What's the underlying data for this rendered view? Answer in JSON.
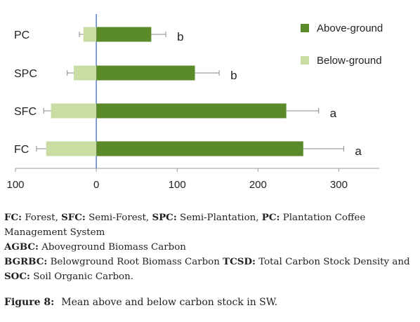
{
  "chart_data": {
    "type": "bar",
    "orientation": "horizontal",
    "categories": [
      "PC",
      "SPC",
      "SFC",
      "FC"
    ],
    "series": [
      {
        "name": "Above-ground",
        "color": "#5a8a2a",
        "values": [
          68,
          122,
          235,
          256
        ],
        "errors": [
          18,
          30,
          40,
          50
        ]
      },
      {
        "name": "Below-ground",
        "color": "#c8dca4",
        "values": [
          -16,
          -28,
          -56,
          -62
        ],
        "errors": [
          5,
          8,
          9,
          12
        ]
      }
    ],
    "significance_labels": [
      "b",
      "b",
      "a",
      "a"
    ],
    "xlim": [
      -100,
      350
    ],
    "xticks": [
      -100,
      0,
      100,
      200,
      300
    ],
    "xtick_labels": [
      "100",
      "0",
      "100",
      "200",
      "300"
    ],
    "legend_position": "top-right"
  },
  "notes": {
    "abbr": [
      {
        "key": "FC:",
        "text": " Forest, "
      },
      {
        "key": "SFC:",
        "text": " Semi-Forest, "
      },
      {
        "key": "SPC:",
        "text": " Semi-Plantation, "
      },
      {
        "key": "PC:",
        "text": " Plantation Coffee Management System"
      }
    ],
    "agbc_key": "AGBC:",
    "agbc_text": " Aboveground Biomass Carbon",
    "bgrbc_key": "BGRBC:",
    "bgrbc_text": " Belowground Root Biomass Carbon ",
    "tcsd_key": "TCSD:",
    "tcsd_text": " Total Carbon Stock Density and ",
    "soc_key": "SOC:",
    "soc_text": " Soil Organic Carbon."
  },
  "caption": {
    "label": "Figure 8:",
    "text": "Mean above and below carbon stock in SW."
  }
}
